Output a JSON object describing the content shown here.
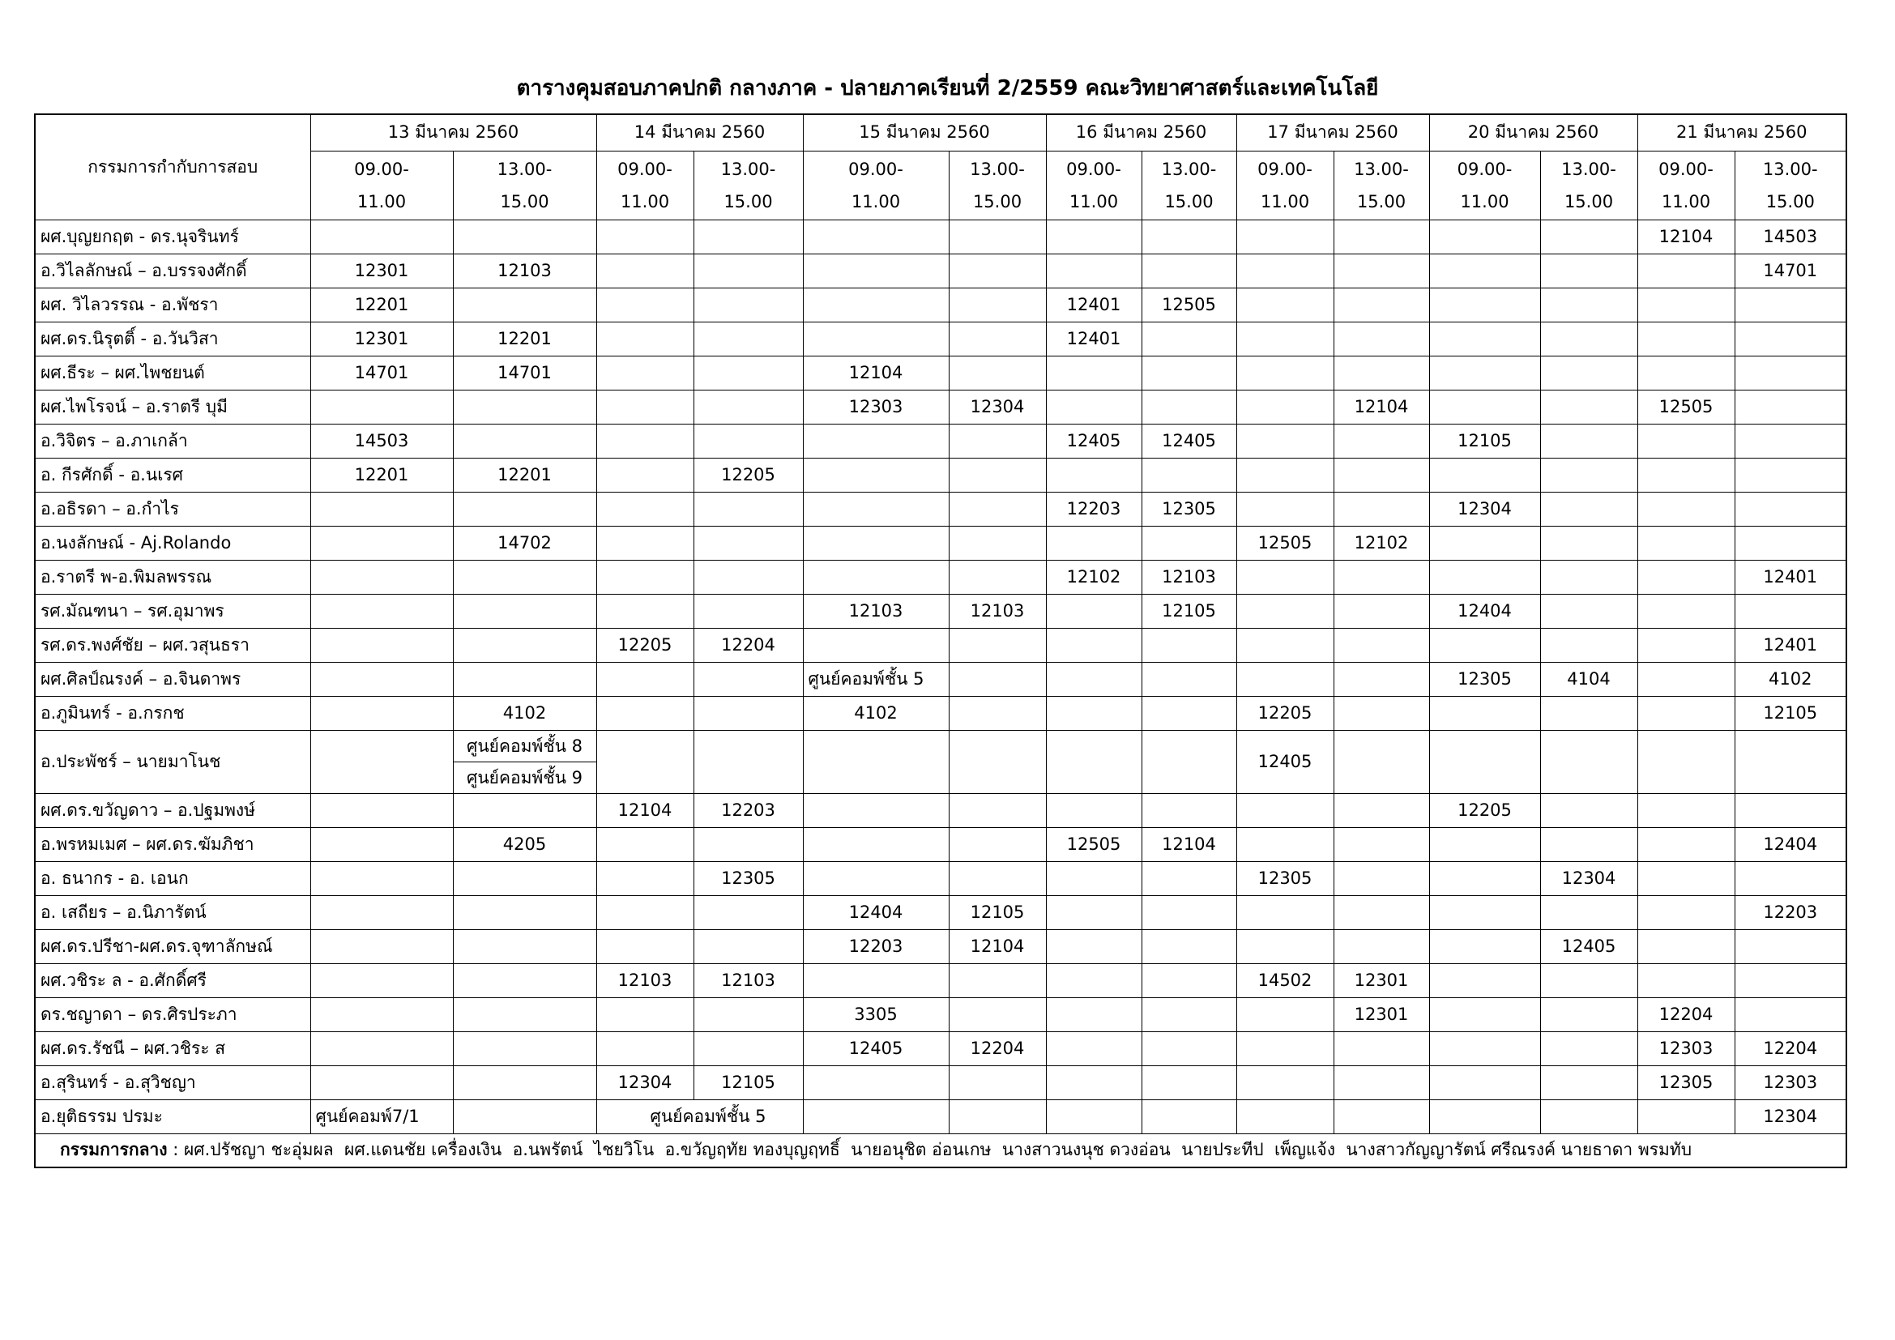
{
  "title": "ตารางคุมสอบภาคปกติ กลางภาค - ปลายภาคเรียนที่ 2/2559 คณะวิทยาศาสตร์และเทคโนโลยี",
  "header": {
    "committee": "กรรมการกำกับการสอบ",
    "days": [
      {
        "date": "13 มีนาคม 2560",
        "slots": [
          "09.00-\n11.00",
          "13.00-\n15.00"
        ]
      },
      {
        "date": "14 มีนาคม 2560",
        "slots": [
          "09.00-\n11.00",
          "13.00-\n15.00"
        ]
      },
      {
        "date": "15 มีนาคม 2560",
        "slots": [
          "09.00-\n11.00",
          "13.00-\n15.00"
        ]
      },
      {
        "date": "16 มีนาคม 2560",
        "slots": [
          "09.00-\n11.00",
          "13.00-\n15.00"
        ]
      },
      {
        "date": "17 มีนาคม 2560",
        "slots": [
          "09.00-\n11.00",
          "13.00-\n15.00"
        ]
      },
      {
        "date": "20 มีนาคม 2560",
        "slots": [
          "09.00-\n11.00",
          "13.00-\n15.00"
        ]
      },
      {
        "date": "21 มีนาคม 2560",
        "slots": [
          "09.00-\n11.00",
          "13.00-\n15.00"
        ]
      }
    ]
  },
  "rows": [
    {
      "name": "ผศ.บุญยกฤต - ดร.นุจรินทร์",
      "cells": [
        null,
        null,
        null,
        null,
        null,
        null,
        null,
        null,
        null,
        null,
        null,
        null,
        "12104",
        "14503"
      ]
    },
    {
      "name": "อ.วิไลลักษณ์ – อ.บรรจงศักดิ์",
      "cells": [
        "12301",
        "12103",
        null,
        null,
        null,
        null,
        null,
        null,
        null,
        null,
        null,
        null,
        null,
        "14701"
      ]
    },
    {
      "name": "ผศ. วิไลวรรณ - อ.พัชรา",
      "cells": [
        "12201",
        null,
        null,
        null,
        null,
        null,
        "12401",
        "12505",
        null,
        null,
        null,
        null,
        null,
        null
      ]
    },
    {
      "name": "ผศ.ดร.นิรุตติ์ - อ.วันวิสา",
      "cells": [
        "12301",
        "12201",
        null,
        null,
        null,
        null,
        "12401",
        null,
        null,
        null,
        null,
        null,
        null,
        null
      ]
    },
    {
      "name": "ผศ.ธีระ – ผศ.ไพชยนต์",
      "cells": [
        "14701",
        "14701",
        null,
        null,
        "12104",
        null,
        null,
        null,
        null,
        null,
        null,
        null,
        null,
        null
      ]
    },
    {
      "name": "ผศ.ไพโรจน์ – อ.ราตรี บุมี",
      "cells": [
        null,
        null,
        null,
        null,
        "12303",
        "12304",
        null,
        null,
        null,
        "12104",
        null,
        null,
        "12505",
        null
      ]
    },
    {
      "name": "อ.วิจิตร – อ.ภาเกล้า",
      "cells": [
        "14503",
        null,
        null,
        null,
        null,
        null,
        "12405",
        "12405",
        null,
        null,
        "12105",
        null,
        null,
        null
      ]
    },
    {
      "name": "อ. กีรศักดิ์ - อ.นเรศ",
      "cells": [
        "12201",
        "12201",
        null,
        "12205",
        null,
        null,
        null,
        null,
        null,
        null,
        null,
        null,
        null,
        null
      ]
    },
    {
      "name": "อ.อธิรดา – อ.กำไร",
      "cells": [
        null,
        null,
        null,
        null,
        null,
        null,
        "12203",
        "12305",
        null,
        null,
        "12304",
        null,
        null,
        null
      ]
    },
    {
      "name": "อ.นงลักษณ์ - Aj.Rolando",
      "cells": [
        null,
        "14702",
        null,
        null,
        null,
        null,
        null,
        null,
        "12505",
        "12102",
        null,
        null,
        null,
        null
      ]
    },
    {
      "name": "อ.ราตรี พ-อ.พิมลพรรณ",
      "cells": [
        null,
        null,
        null,
        null,
        null,
        null,
        "12102",
        "12103",
        null,
        null,
        null,
        null,
        null,
        "12401"
      ]
    },
    {
      "name": "รศ.มัณฑนา – รศ.อุมาพร",
      "cells": [
        null,
        null,
        null,
        null,
        "12103",
        "12103",
        null,
        "12105",
        null,
        null,
        "12404",
        null,
        null,
        null
      ]
    },
    {
      "name": "รศ.ดร.พงศ์ชัย – ผศ.วสุนธรา",
      "cells": [
        null,
        null,
        "12205",
        "12204",
        null,
        null,
        null,
        null,
        null,
        null,
        null,
        null,
        null,
        "12401"
      ]
    },
    {
      "name": "ผศ.ศิลป์ณรงค์ – อ.จินดาพร",
      "cells": [
        null,
        null,
        null,
        null,
        "ศูนย์คอมพ์ชั้น 5",
        null,
        null,
        null,
        null,
        null,
        "12305",
        "4104",
        null,
        "4102"
      ]
    },
    {
      "name": "อ.ภูมินทร์ - อ.กรกช",
      "cells": [
        null,
        "4102",
        null,
        null,
        "4102",
        null,
        null,
        null,
        "12205",
        null,
        null,
        null,
        null,
        "12105"
      ]
    },
    {
      "name": "อ.ประพัชร์ – นายมาโนช",
      "cells": [
        null,
        [
          "ศูนย์คอมพ์ชั้น 8",
          "ศูนย์คอมพ์ชั้น 9"
        ],
        null,
        null,
        null,
        null,
        null,
        null,
        "12405",
        null,
        null,
        null,
        null,
        null
      ]
    },
    {
      "name": "ผศ.ดร.ขวัญดาว – อ.ปฐมพงษ์",
      "cells": [
        null,
        null,
        "12104",
        "12203",
        null,
        null,
        null,
        null,
        null,
        null,
        "12205",
        null,
        null,
        null
      ]
    },
    {
      "name": "อ.พรหมเมศ – ผศ.ดร.ฆัมภิชา",
      "cells": [
        null,
        "4205",
        null,
        null,
        null,
        null,
        "12505",
        "12104",
        null,
        null,
        null,
        null,
        null,
        "12404"
      ]
    },
    {
      "name": "อ. ธนากร - อ. เอนก",
      "cells": [
        null,
        null,
        null,
        "12305",
        null,
        null,
        null,
        null,
        "12305",
        null,
        null,
        "12304",
        null,
        null
      ]
    },
    {
      "name": "อ. เสถียร – อ.นิภารัตน์",
      "cells": [
        null,
        null,
        null,
        null,
        "12404",
        "12105",
        null,
        null,
        null,
        null,
        null,
        null,
        null,
        "12203"
      ]
    },
    {
      "name": "ผศ.ดร.ปรีชา-ผศ.ดร.จุฑาลักษณ์",
      "cells": [
        null,
        null,
        null,
        null,
        "12203",
        "12104",
        null,
        null,
        null,
        null,
        null,
        "12405",
        null,
        null
      ]
    },
    {
      "name": "ผศ.วชิระ ล - อ.ศักดิ์ศรี",
      "cells": [
        null,
        null,
        "12103",
        "12103",
        null,
        null,
        null,
        null,
        "14502",
        "12301",
        null,
        null,
        null,
        null
      ]
    },
    {
      "name": "ดร.ชญาดา – ดร.ศิรประภา",
      "cells": [
        null,
        null,
        null,
        null,
        "3305",
        null,
        null,
        null,
        null,
        "12301",
        null,
        null,
        "12204",
        null
      ]
    },
    {
      "name": "ผศ.ดร.รัชนี – ผศ.วชิระ ส",
      "cells": [
        null,
        null,
        null,
        null,
        "12405",
        "12204",
        null,
        null,
        null,
        null,
        null,
        null,
        "12303",
        "12204"
      ]
    },
    {
      "name": "อ.สุรินทร์ - อ.สุวิชญา",
      "cells": [
        null,
        null,
        "12304",
        "12105",
        null,
        null,
        null,
        null,
        null,
        null,
        null,
        null,
        "12305",
        "12303"
      ]
    },
    {
      "name": "อ.ยุติธรรม ปรมะ",
      "cells": [
        "ศูนย์คอมพ์7/1",
        null,
        "ศูนย์คอมพ์ชั้น 5",
        null,
        null,
        null,
        null,
        null,
        null,
        null,
        null,
        null,
        null,
        "12304"
      ]
    }
  ],
  "footer": {
    "label": "กรรมการกลาง",
    "text": ": ผศ.ปรัชญา ชะอุ่มผล  ผศ.แดนชัย เครื่องเงิน  อ.นพรัตน์  ไชยวิโน  อ.ขวัญฤทัย ทองบุญฤทธิ์  นายอนุชิต อ่อนเกษ  นางสาวนงนุช ดวงอ่อน  นายประทีป  เพ็ญแจ้ง  นางสาวกัญญารัตน์ ศรีณรงค์ นายธาดา พรมทับ"
  }
}
